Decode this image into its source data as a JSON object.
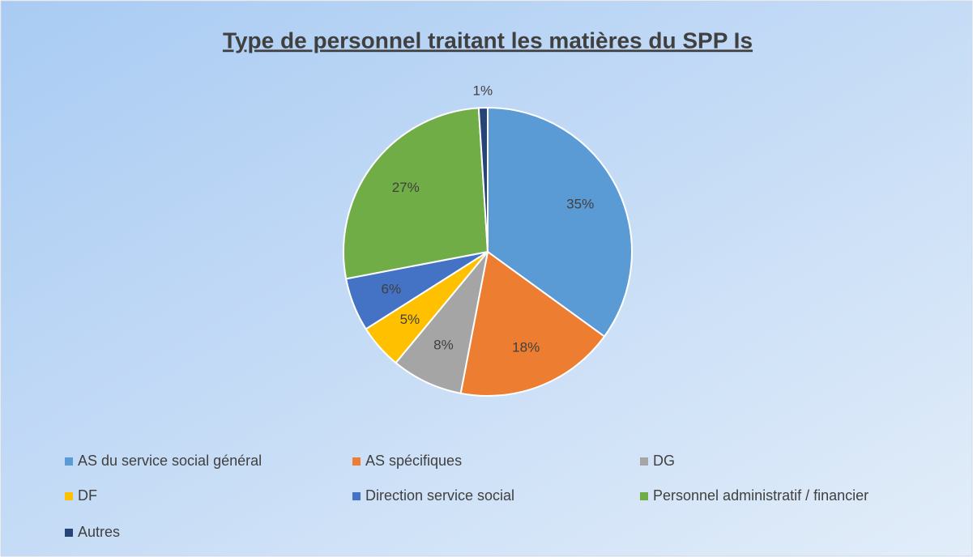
{
  "chart_data": {
    "type": "pie",
    "title": "Type de personnel traitant les matières du SPP Is",
    "categories": [
      "AS du service social général",
      "AS spécifiques",
      "DG",
      "DF",
      "Direction service social",
      "Personnel administratif / financier",
      "Autres"
    ],
    "values": [
      35,
      18,
      8,
      5,
      6,
      27,
      1
    ],
    "value_labels": [
      "35%",
      "18%",
      "8%",
      "5%",
      "6%",
      "27%",
      "1%"
    ],
    "colors": [
      "#5b9bd5",
      "#ed7d31",
      "#a5a5a5",
      "#ffc000",
      "#4472c4",
      "#70ad47",
      "#264478"
    ],
    "legend": "bottom"
  }
}
